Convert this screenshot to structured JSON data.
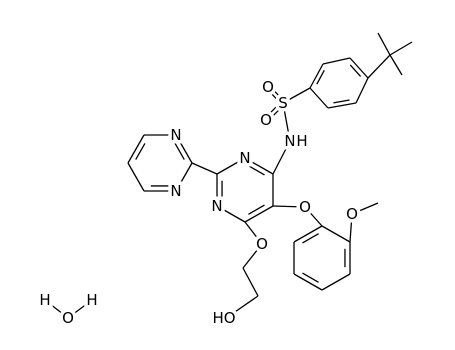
{
  "labels": {
    "S": "S",
    "O_top": "O",
    "O_bottom": "O",
    "N_amide": "N",
    "H_amide": "H",
    "N_ring3": "N",
    "N_ring1": "N",
    "N_pyr_top": "N",
    "N_pyr_bottom": "N",
    "O_phenoxy": "O",
    "O_methoxy": "O",
    "O_ethoxy": "O",
    "HO": "HO",
    "H_water_left": "H",
    "O_water": "O",
    "H_water_right": "H"
  }
}
